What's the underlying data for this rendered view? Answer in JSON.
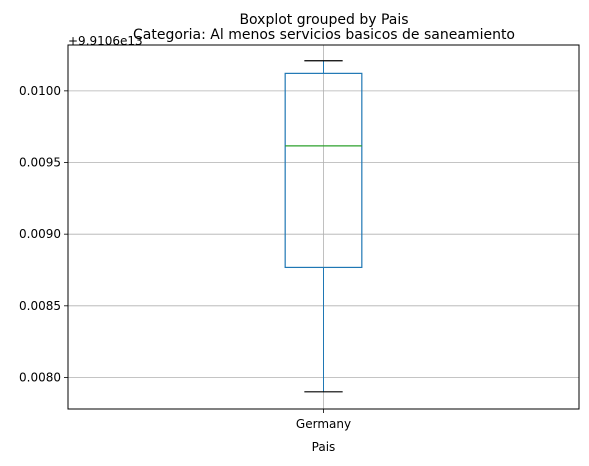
{
  "chart_data": {
    "type": "box",
    "suptitle": "Boxplot grouped by Pais",
    "title": "Categoria: Al menos servicios basicos de saneamiento",
    "xlabel": "Pais",
    "ylabel": "",
    "offset_label": "+9.9106e13",
    "categories": [
      "Germany"
    ],
    "boxes": [
      {
        "category": "Germany",
        "whisker_low": 0.0079,
        "q1": 0.008768,
        "median": 0.009616,
        "q3": 0.010122,
        "whisker_high": 0.01021
      }
    ],
    "ylim": [
      0.00778,
      0.01032
    ],
    "yticks": [
      0.008,
      0.0085,
      0.009,
      0.0095,
      0.01
    ],
    "ytick_labels": [
      "0.0080",
      "0.0085",
      "0.0090",
      "0.0095",
      "0.0100"
    ],
    "grid": true,
    "colors": {
      "box": "#1f77b4",
      "median": "#2ca02c",
      "whisker": "#1f77b4",
      "cap": "#000000",
      "grid": "#b0b0b0"
    }
  }
}
